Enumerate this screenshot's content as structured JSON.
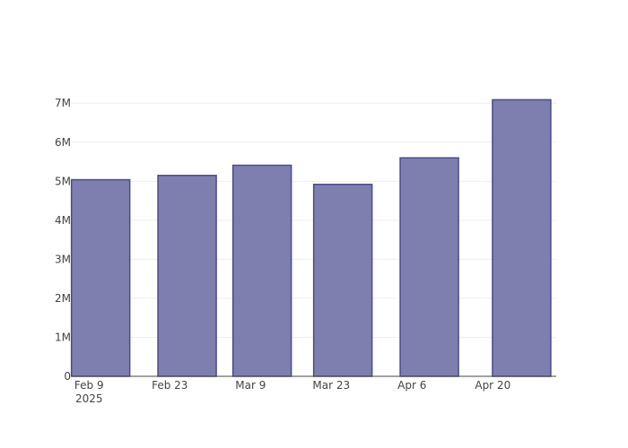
{
  "chart_data": {
    "type": "bar",
    "x": [
      "2025-02-11",
      "2025-02-26",
      "2025-03-11",
      "2025-03-25",
      "2025-04-09",
      "2025-04-25"
    ],
    "values": [
      5040000,
      5150000,
      5410000,
      4920000,
      5600000,
      7090000
    ],
    "color": "#7f7faf",
    "line_color": "#4b4b8b",
    "xlim": [
      "2025-02-06",
      "2025-05-01"
    ],
    "xticks": [
      {
        "value": "2025-02-09",
        "label": "Feb 9\n2025"
      },
      {
        "value": "2025-02-23",
        "label": "Feb 23"
      },
      {
        "value": "2025-03-09",
        "label": "Mar 9"
      },
      {
        "value": "2025-03-23",
        "label": "Mar 23"
      },
      {
        "value": "2025-04-06",
        "label": "Apr 6"
      },
      {
        "value": "2025-04-20",
        "label": "Apr 20"
      }
    ],
    "ylim": [
      0,
      7350000
    ],
    "yticks": [
      0,
      {
        "value": 1000000,
        "label": "1M"
      },
      {
        "value": 2000000,
        "label": "2M"
      },
      {
        "value": 3000000,
        "label": "3M"
      },
      {
        "value": 4000000,
        "label": "4M"
      },
      {
        "value": 5000000,
        "label": "5M"
      },
      {
        "value": 6000000,
        "label": "6M"
      },
      {
        "value": 7000000,
        "label": "7M"
      }
    ],
    "grid": true
  }
}
